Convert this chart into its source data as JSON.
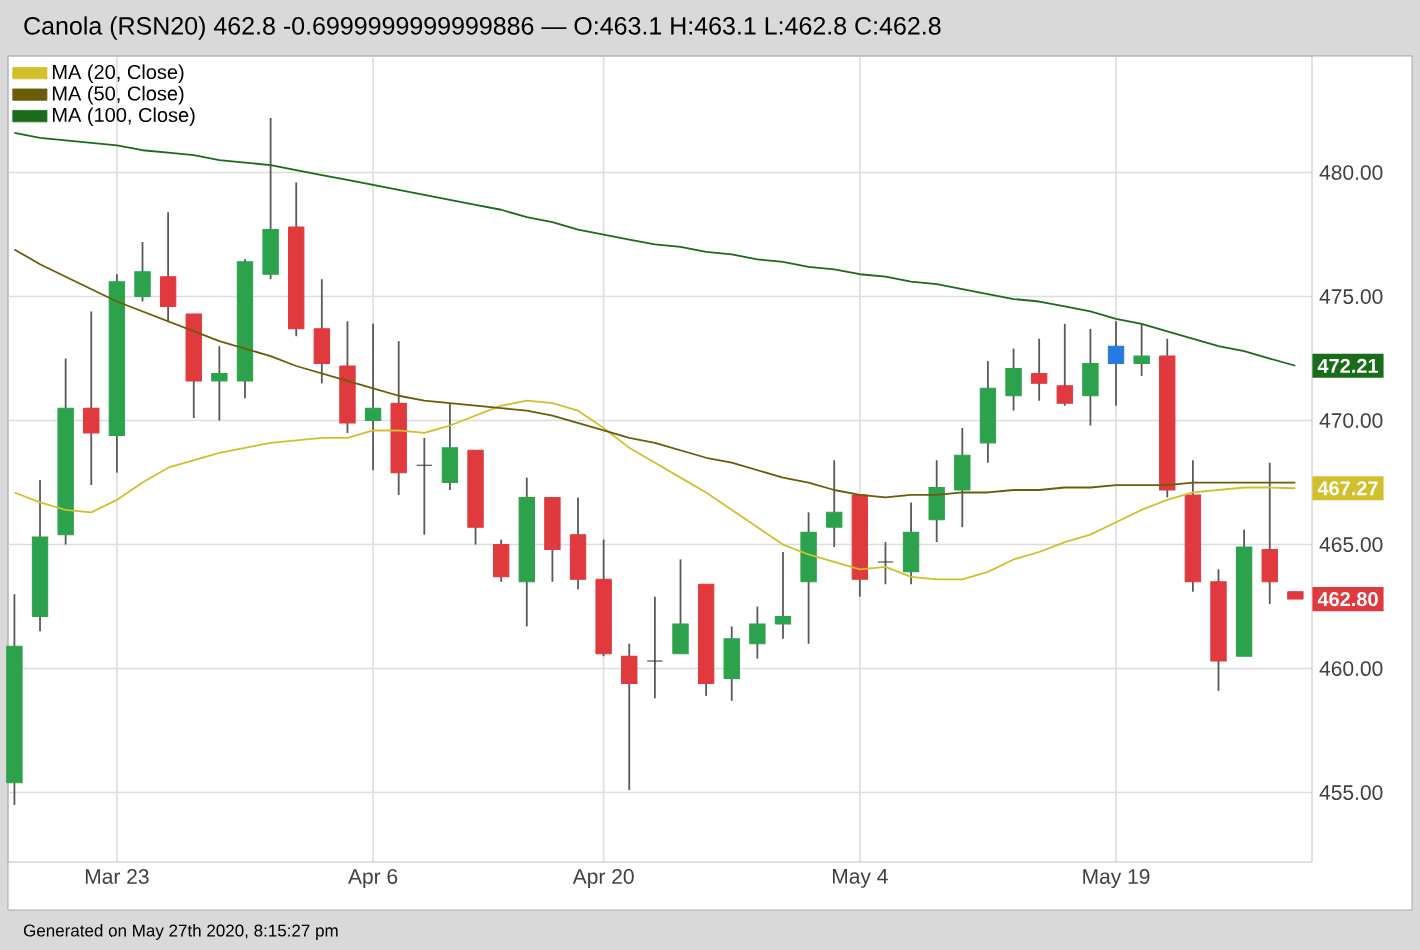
{
  "chart_data": {
    "type": "candlestick",
    "title": "Canola (RSN20) 462.8 -0.6999999999999886 — O:463.1 H:463.1 L:462.8 C:462.8",
    "categories": [
      null,
      null,
      null,
      null,
      "Mar 23",
      null,
      null,
      null,
      null,
      null,
      null,
      null,
      null,
      null,
      "Apr 6",
      null,
      null,
      null,
      null,
      null,
      null,
      null,
      null,
      "Apr 20",
      null,
      null,
      null,
      null,
      null,
      null,
      null,
      null,
      null,
      "May 4",
      null,
      null,
      null,
      null,
      null,
      null,
      null,
      null,
      null,
      "May 19",
      null,
      null,
      null,
      null,
      null,
      null,
      null
    ],
    "series": [
      {
        "type": "line",
        "name": "MA (20, Close)",
        "color": "#d2bf2c",
        "values": [
          467.1,
          466.7,
          466.4,
          466.3,
          466.8,
          467.5,
          468.1,
          468.4,
          468.7,
          468.9,
          469.1,
          469.2,
          469.3,
          469.3,
          469.6,
          469.6,
          469.5,
          469.8,
          470.2,
          470.6,
          470.8,
          470.7,
          470.4,
          469.7,
          468.9,
          468.3,
          467.7,
          467.1,
          466.4,
          465.7,
          465.0,
          464.6,
          464.3,
          464.0,
          464.1,
          463.7,
          463.6,
          463.6,
          463.9,
          464.4,
          464.7,
          465.1,
          465.4,
          465.9,
          466.4,
          466.8,
          467.1,
          467.2,
          467.3,
          467.3,
          467.27
        ]
      },
      {
        "type": "line",
        "name": "MA (50, Close)",
        "color": "#6b5c0a",
        "values": [
          476.9,
          476.3,
          475.8,
          475.3,
          474.8,
          474.4,
          474.0,
          473.6,
          473.2,
          472.9,
          472.6,
          472.2,
          471.9,
          471.6,
          471.3,
          471.0,
          470.8,
          470.7,
          470.6,
          470.5,
          470.4,
          470.2,
          469.9,
          469.6,
          469.3,
          469.1,
          468.8,
          468.5,
          468.3,
          468.0,
          467.7,
          467.5,
          467.2,
          467.0,
          466.9,
          467.0,
          467.0,
          467.1,
          467.1,
          467.2,
          467.2,
          467.3,
          467.3,
          467.4,
          467.4,
          467.4,
          467.5,
          467.5,
          467.5,
          467.5,
          467.5
        ]
      },
      {
        "type": "line",
        "name": "MA (100, Close)",
        "color": "#1a6b1a",
        "values": [
          481.6,
          481.4,
          481.3,
          481.2,
          481.1,
          480.9,
          480.8,
          480.7,
          480.5,
          480.4,
          480.3,
          480.1,
          479.9,
          479.7,
          479.5,
          479.3,
          479.1,
          478.9,
          478.7,
          478.5,
          478.2,
          478.0,
          477.7,
          477.5,
          477.3,
          477.1,
          477.0,
          476.8,
          476.7,
          476.5,
          476.4,
          476.2,
          476.1,
          475.9,
          475.8,
          475.6,
          475.5,
          475.3,
          475.1,
          474.9,
          474.8,
          474.6,
          474.4,
          474.1,
          473.9,
          473.6,
          473.3,
          473.0,
          472.8,
          472.5,
          472.21
        ]
      },
      {
        "ohlc": [
          [
            455.4,
            463.0,
            454.5,
            460.9
          ],
          [
            462.1,
            467.6,
            461.5,
            465.3
          ],
          [
            465.4,
            472.5,
            465.0,
            470.5
          ],
          [
            470.5,
            474.4,
            467.4,
            469.5
          ],
          [
            469.4,
            475.9,
            467.9,
            475.6
          ],
          [
            475.0,
            477.2,
            474.8,
            476.0
          ],
          [
            475.8,
            478.4,
            474.0,
            474.6
          ],
          [
            474.3,
            474.3,
            470.1,
            471.6
          ],
          [
            471.6,
            473.0,
            470.0,
            471.9
          ],
          [
            471.6,
            476.5,
            470.9,
            476.4
          ],
          [
            475.9,
            482.2,
            475.7,
            477.7
          ],
          [
            477.8,
            479.6,
            473.4,
            473.7
          ],
          [
            473.7,
            475.7,
            471.5,
            472.3
          ],
          [
            472.2,
            474.0,
            469.5,
            469.9
          ],
          [
            470.0,
            473.9,
            468.0,
            470.5
          ],
          [
            470.7,
            473.2,
            467.0,
            467.9
          ],
          [
            468.2,
            469.3,
            465.4,
            468.2
          ],
          [
            467.5,
            470.7,
            467.2,
            468.9
          ],
          [
            468.8,
            468.8,
            465.0,
            465.7
          ],
          [
            465.0,
            465.2,
            463.5,
            463.7
          ],
          [
            463.5,
            467.7,
            461.7,
            466.9
          ],
          [
            466.9,
            466.9,
            463.5,
            464.8
          ],
          [
            465.4,
            466.9,
            463.2,
            463.6
          ],
          [
            463.6,
            465.2,
            460.5,
            460.6
          ],
          [
            460.5,
            461.0,
            455.1,
            459.4
          ],
          [
            460.3,
            462.9,
            458.8,
            460.3
          ],
          [
            460.6,
            464.4,
            460.6,
            461.8
          ],
          [
            463.4,
            463.4,
            458.9,
            459.4
          ],
          [
            459.6,
            461.7,
            458.7,
            461.2
          ],
          [
            461.0,
            462.5,
            460.4,
            461.8
          ],
          [
            461.8,
            464.7,
            461.2,
            462.1
          ],
          [
            463.5,
            466.3,
            461.0,
            465.5
          ],
          [
            465.7,
            468.4,
            464.9,
            466.3
          ],
          [
            467.0,
            467.0,
            462.9,
            463.6
          ],
          [
            464.3,
            465.1,
            463.4,
            464.3
          ],
          [
            463.9,
            466.7,
            463.4,
            465.5
          ],
          [
            466.0,
            468.4,
            465.1,
            467.3
          ],
          [
            467.2,
            469.7,
            465.7,
            468.6
          ],
          [
            469.1,
            472.4,
            468.3,
            471.3
          ],
          [
            471.0,
            472.9,
            470.4,
            472.1
          ],
          [
            471.9,
            473.3,
            470.8,
            471.5
          ],
          [
            471.4,
            473.9,
            470.6,
            470.7
          ],
          [
            471.0,
            473.7,
            469.8,
            472.3
          ],
          [
            472.3,
            474.0,
            470.6,
            473.0
          ],
          [
            472.3,
            473.9,
            471.8,
            472.6
          ],
          [
            472.6,
            473.3,
            466.9,
            467.2
          ],
          [
            467.0,
            468.4,
            463.1,
            463.5
          ],
          [
            463.5,
            464.0,
            459.1,
            460.3
          ],
          [
            460.5,
            465.6,
            460.5,
            464.9
          ],
          [
            464.8,
            468.3,
            462.6,
            463.5
          ],
          [
            463.1,
            463.1,
            462.8,
            462.8
          ]
        ],
        "colors": [
          "#2ca24d",
          "#2ca24d",
          "#2ca24d",
          "#e0393e",
          "#2ca24d",
          "#2ca24d",
          "#e0393e",
          "#e0393e",
          "#2ca24d",
          "#2ca24d",
          "#2ca24d",
          "#e0393e",
          "#e0393e",
          "#e0393e",
          "#2ca24d",
          "#e0393e",
          "#333333",
          "#2ca24d",
          "#e0393e",
          "#e0393e",
          "#2ca24d",
          "#e0393e",
          "#e0393e",
          "#e0393e",
          "#e0393e",
          "#333333",
          "#2ca24d",
          "#e0393e",
          "#2ca24d",
          "#2ca24d",
          "#2ca24d",
          "#2ca24d",
          "#2ca24d",
          "#e0393e",
          "#333333",
          "#2ca24d",
          "#2ca24d",
          "#2ca24d",
          "#2ca24d",
          "#2ca24d",
          "#e0393e",
          "#e0393e",
          "#2ca24d",
          "#2979e0",
          "#2ca24d",
          "#e0393e",
          "#e0393e",
          "#e0393e",
          "#2ca24d",
          "#e0393e",
          "#e0393e"
        ]
      }
    ],
    "ylim": [
      452.2,
      484.7
    ],
    "yticks": [
      {
        "value": 455,
        "label": "455.00"
      },
      {
        "value": 460,
        "label": "460.00"
      },
      {
        "value": 465,
        "label": "465.00"
      },
      {
        "value": 470,
        "label": "470.00"
      },
      {
        "value": 475,
        "label": "475.00"
      },
      {
        "value": 480,
        "label": "480.00"
      }
    ],
    "grid": true,
    "legend": "top left",
    "annotations": [
      {
        "text": "472.21",
        "y": 472.21
      },
      {
        "text": "467.27",
        "y": 467.27
      },
      {
        "text": "462.80",
        "y": 462.8
      },
      "Generated on May 27th 2020, 8:15:27 pm"
    ]
  }
}
